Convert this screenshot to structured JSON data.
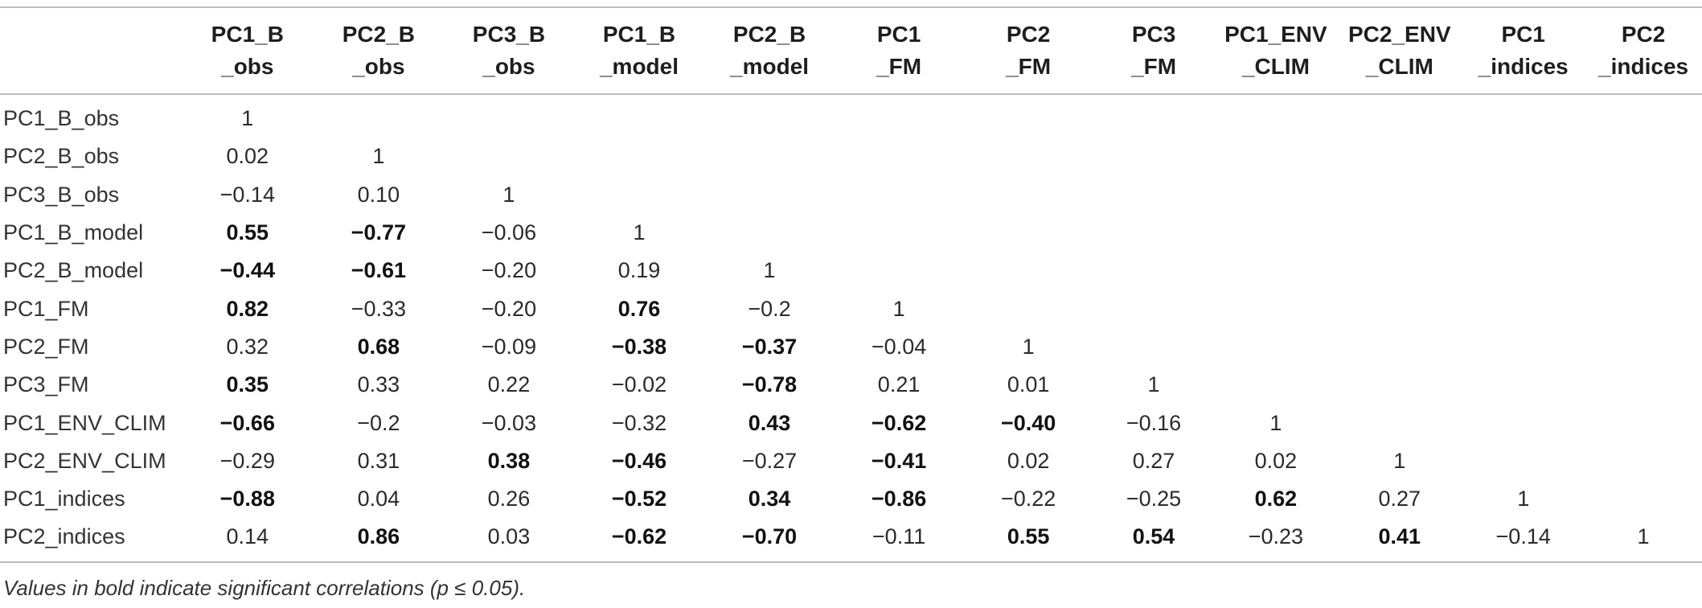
{
  "table": {
    "columns": [
      {
        "line1": "PC1_B",
        "line2": "_obs"
      },
      {
        "line1": "PC2_B",
        "line2": "_obs"
      },
      {
        "line1": "PC3_B",
        "line2": "_obs"
      },
      {
        "line1": "PC1_B",
        "line2": "_model"
      },
      {
        "line1": "PC2_B",
        "line2": "_model"
      },
      {
        "line1": "PC1",
        "line2": "_FM"
      },
      {
        "line1": "PC2",
        "line2": "_FM"
      },
      {
        "line1": "PC3",
        "line2": "_FM"
      },
      {
        "line1": "PC1_ENV",
        "line2": "_CLIM"
      },
      {
        "line1": "PC2_ENV",
        "line2": "_CLIM"
      },
      {
        "line1": "PC1",
        "line2": "_indices"
      },
      {
        "line1": "PC2",
        "line2": "_indices"
      }
    ],
    "rows": [
      {
        "label": "PC1_B_obs",
        "cells": [
          {
            "v": "1",
            "b": false
          }
        ]
      },
      {
        "label": "PC2_B_obs",
        "cells": [
          {
            "v": "0.02",
            "b": false
          },
          {
            "v": "1",
            "b": false
          }
        ]
      },
      {
        "label": "PC3_B_obs",
        "cells": [
          {
            "v": "−0.14",
            "b": false
          },
          {
            "v": "0.10",
            "b": false
          },
          {
            "v": "1",
            "b": false
          }
        ]
      },
      {
        "label": "PC1_B_model",
        "cells": [
          {
            "v": "0.55",
            "b": true
          },
          {
            "v": "−0.77",
            "b": true
          },
          {
            "v": "−0.06",
            "b": false
          },
          {
            "v": "1",
            "b": false
          }
        ]
      },
      {
        "label": "PC2_B_model",
        "cells": [
          {
            "v": "−0.44",
            "b": true
          },
          {
            "v": "−0.61",
            "b": true
          },
          {
            "v": "−0.20",
            "b": false
          },
          {
            "v": "0.19",
            "b": false
          },
          {
            "v": "1",
            "b": false
          }
        ]
      },
      {
        "label": "PC1_FM",
        "cells": [
          {
            "v": "0.82",
            "b": true
          },
          {
            "v": "−0.33",
            "b": false
          },
          {
            "v": "−0.20",
            "b": false
          },
          {
            "v": "0.76",
            "b": true
          },
          {
            "v": "−0.2",
            "b": false
          },
          {
            "v": "1",
            "b": false
          }
        ]
      },
      {
        "label": "PC2_FM",
        "cells": [
          {
            "v": "0.32",
            "b": false
          },
          {
            "v": "0.68",
            "b": true
          },
          {
            "v": "−0.09",
            "b": false
          },
          {
            "v": "−0.38",
            "b": true
          },
          {
            "v": "−0.37",
            "b": true
          },
          {
            "v": "−0.04",
            "b": false
          },
          {
            "v": "1",
            "b": false
          }
        ]
      },
      {
        "label": "PC3_FM",
        "cells": [
          {
            "v": "0.35",
            "b": true
          },
          {
            "v": "0.33",
            "b": false
          },
          {
            "v": "0.22",
            "b": false
          },
          {
            "v": "−0.02",
            "b": false
          },
          {
            "v": "−0.78",
            "b": true
          },
          {
            "v": "0.21",
            "b": false
          },
          {
            "v": "0.01",
            "b": false
          },
          {
            "v": "1",
            "b": false
          }
        ]
      },
      {
        "label": "PC1_ENV_CLIM",
        "cells": [
          {
            "v": "−0.66",
            "b": true
          },
          {
            "v": "−0.2",
            "b": false
          },
          {
            "v": "−0.03",
            "b": false
          },
          {
            "v": "−0.32",
            "b": false
          },
          {
            "v": "0.43",
            "b": true
          },
          {
            "v": "−0.62",
            "b": true
          },
          {
            "v": "−0.40",
            "b": true
          },
          {
            "v": "−0.16",
            "b": false
          },
          {
            "v": "1",
            "b": false
          }
        ]
      },
      {
        "label": "PC2_ENV_CLIM",
        "cells": [
          {
            "v": "−0.29",
            "b": false
          },
          {
            "v": "0.31",
            "b": false
          },
          {
            "v": "0.38",
            "b": true
          },
          {
            "v": "−0.46",
            "b": true
          },
          {
            "v": "−0.27",
            "b": false
          },
          {
            "v": "−0.41",
            "b": true
          },
          {
            "v": "0.02",
            "b": false
          },
          {
            "v": "0.27",
            "b": false
          },
          {
            "v": "0.02",
            "b": false
          },
          {
            "v": "1",
            "b": false
          }
        ]
      },
      {
        "label": "PC1_indices",
        "cells": [
          {
            "v": "−0.88",
            "b": true
          },
          {
            "v": "0.04",
            "b": false
          },
          {
            "v": "0.26",
            "b": false
          },
          {
            "v": "−0.52",
            "b": true
          },
          {
            "v": "0.34",
            "b": true
          },
          {
            "v": "−0.86",
            "b": true
          },
          {
            "v": "−0.22",
            "b": false
          },
          {
            "v": "−0.25",
            "b": false
          },
          {
            "v": "0.62",
            "b": true
          },
          {
            "v": "0.27",
            "b": false
          },
          {
            "v": "1",
            "b": false
          }
        ]
      },
      {
        "label": "PC2_indices",
        "cells": [
          {
            "v": "0.14",
            "b": false
          },
          {
            "v": "0.86",
            "b": true
          },
          {
            "v": "0.03",
            "b": false
          },
          {
            "v": "−0.62",
            "b": true
          },
          {
            "v": "−0.70",
            "b": true
          },
          {
            "v": "−0.11",
            "b": false
          },
          {
            "v": "0.55",
            "b": true
          },
          {
            "v": "0.54",
            "b": true
          },
          {
            "v": "−0.23",
            "b": false
          },
          {
            "v": "0.41",
            "b": true
          },
          {
            "v": "−0.14",
            "b": false
          },
          {
            "v": "1",
            "b": false
          }
        ]
      }
    ]
  },
  "footnote": "Values in bold indicate significant correlations (p ≤ 0.05)."
}
